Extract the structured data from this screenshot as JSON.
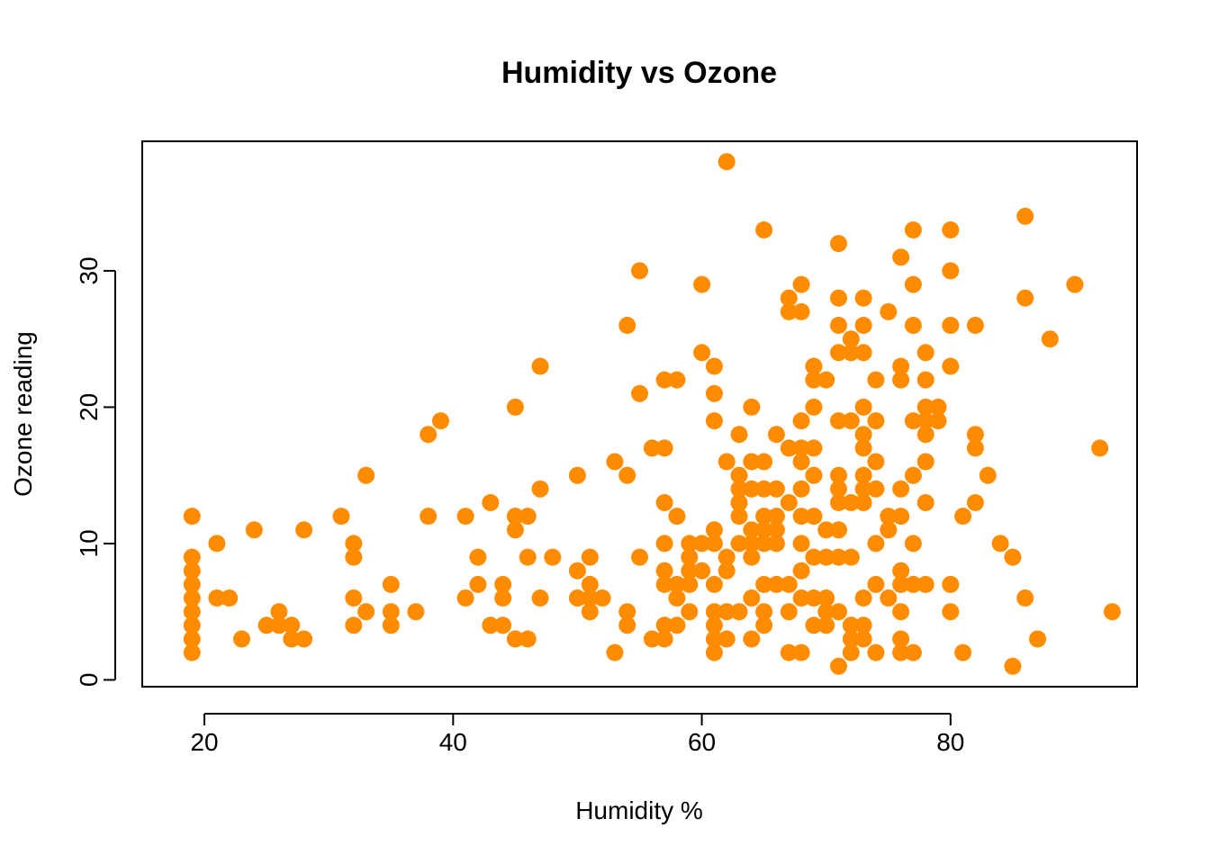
{
  "chart_data": {
    "type": "scatter",
    "title": "Humidity vs Ozone",
    "xlabel": "Humidity %",
    "ylabel": "Ozone reading",
    "xlim": [
      15,
      95
    ],
    "ylim": [
      -0.5,
      39.5
    ],
    "xticks": [
      20,
      40,
      60,
      80
    ],
    "yticks": [
      0,
      10,
      20,
      30
    ],
    "grid": false,
    "marker": "filled-circle",
    "color": "#ff8c00",
    "points": [
      [
        19,
        12
      ],
      [
        19,
        9
      ],
      [
        19,
        8
      ],
      [
        19,
        7
      ],
      [
        19,
        6
      ],
      [
        19,
        5
      ],
      [
        19,
        4
      ],
      [
        19,
        3
      ],
      [
        19,
        2
      ],
      [
        21,
        10
      ],
      [
        21,
        6
      ],
      [
        22,
        6
      ],
      [
        23,
        3
      ],
      [
        24,
        11
      ],
      [
        25,
        4
      ],
      [
        26,
        5
      ],
      [
        26,
        4
      ],
      [
        27,
        4
      ],
      [
        27,
        3
      ],
      [
        28,
        11
      ],
      [
        28,
        3
      ],
      [
        31,
        12
      ],
      [
        32,
        10
      ],
      [
        32,
        9
      ],
      [
        32,
        6
      ],
      [
        32,
        4
      ],
      [
        33,
        15
      ],
      [
        33,
        5
      ],
      [
        35,
        7
      ],
      [
        35,
        5
      ],
      [
        35,
        4
      ],
      [
        37,
        5
      ],
      [
        38,
        18
      ],
      [
        38,
        12
      ],
      [
        39,
        19
      ],
      [
        41,
        12
      ],
      [
        41,
        6
      ],
      [
        42,
        9
      ],
      [
        42,
        7
      ],
      [
        43,
        13
      ],
      [
        43,
        4
      ],
      [
        44,
        7
      ],
      [
        44,
        6
      ],
      [
        44,
        4
      ],
      [
        45,
        20
      ],
      [
        45,
        12
      ],
      [
        45,
        11
      ],
      [
        45,
        3
      ],
      [
        46,
        12
      ],
      [
        46,
        9
      ],
      [
        46,
        3
      ],
      [
        47,
        23
      ],
      [
        47,
        14
      ],
      [
        47,
        6
      ],
      [
        48,
        9
      ],
      [
        50,
        15
      ],
      [
        50,
        8
      ],
      [
        50,
        6
      ],
      [
        51,
        9
      ],
      [
        51,
        7
      ],
      [
        51,
        6
      ],
      [
        51,
        5
      ],
      [
        52,
        6
      ],
      [
        53,
        16
      ],
      [
        53,
        2
      ],
      [
        54,
        26
      ],
      [
        54,
        15
      ],
      [
        54,
        5
      ],
      [
        54,
        4
      ],
      [
        55,
        30
      ],
      [
        55,
        21
      ],
      [
        55,
        9
      ],
      [
        56,
        17
      ],
      [
        56,
        3
      ],
      [
        57,
        22
      ],
      [
        57,
        17
      ],
      [
        57,
        13
      ],
      [
        57,
        10
      ],
      [
        57,
        8
      ],
      [
        57,
        7
      ],
      [
        57,
        4
      ],
      [
        57,
        3
      ],
      [
        58,
        22
      ],
      [
        58,
        12
      ],
      [
        58,
        7
      ],
      [
        58,
        6
      ],
      [
        58,
        4
      ],
      [
        59,
        10
      ],
      [
        59,
        9
      ],
      [
        59,
        8
      ],
      [
        59,
        7
      ],
      [
        59,
        5
      ],
      [
        60,
        29
      ],
      [
        60,
        24
      ],
      [
        60,
        10
      ],
      [
        60,
        8
      ],
      [
        61,
        23
      ],
      [
        61,
        21
      ],
      [
        61,
        19
      ],
      [
        61,
        11
      ],
      [
        61,
        10
      ],
      [
        61,
        7
      ],
      [
        61,
        5
      ],
      [
        61,
        4
      ],
      [
        61,
        3
      ],
      [
        61,
        2
      ],
      [
        62,
        38
      ],
      [
        62,
        16
      ],
      [
        62,
        9
      ],
      [
        62,
        8
      ],
      [
        62,
        5
      ],
      [
        62,
        3
      ],
      [
        63,
        18
      ],
      [
        63,
        15
      ],
      [
        63,
        14
      ],
      [
        63,
        13
      ],
      [
        63,
        12
      ],
      [
        63,
        10
      ],
      [
        63,
        5
      ],
      [
        64,
        20
      ],
      [
        64,
        16
      ],
      [
        64,
        14
      ],
      [
        64,
        11
      ],
      [
        64,
        10
      ],
      [
        64,
        9
      ],
      [
        64,
        6
      ],
      [
        64,
        3
      ],
      [
        65,
        33
      ],
      [
        65,
        16
      ],
      [
        65,
        14
      ],
      [
        65,
        12
      ],
      [
        65,
        11
      ],
      [
        65,
        10
      ],
      [
        65,
        7
      ],
      [
        65,
        5
      ],
      [
        65,
        4
      ],
      [
        66,
        18
      ],
      [
        66,
        14
      ],
      [
        66,
        12
      ],
      [
        66,
        11
      ],
      [
        66,
        10
      ],
      [
        66,
        7
      ],
      [
        67,
        28
      ],
      [
        67,
        27
      ],
      [
        67,
        17
      ],
      [
        67,
        13
      ],
      [
        67,
        7
      ],
      [
        67,
        5
      ],
      [
        67,
        2
      ],
      [
        68,
        29
      ],
      [
        68,
        27
      ],
      [
        68,
        19
      ],
      [
        68,
        17
      ],
      [
        68,
        16
      ],
      [
        68,
        14
      ],
      [
        68,
        12
      ],
      [
        68,
        10
      ],
      [
        68,
        8
      ],
      [
        68,
        6
      ],
      [
        68,
        2
      ],
      [
        69,
        23
      ],
      [
        69,
        22
      ],
      [
        69,
        20
      ],
      [
        69,
        17
      ],
      [
        69,
        15
      ],
      [
        69,
        12
      ],
      [
        69,
        9
      ],
      [
        69,
        6
      ],
      [
        69,
        4
      ],
      [
        70,
        22
      ],
      [
        70,
        11
      ],
      [
        70,
        9
      ],
      [
        70,
        6
      ],
      [
        70,
        5
      ],
      [
        70,
        4
      ],
      [
        71,
        32
      ],
      [
        71,
        28
      ],
      [
        71,
        26
      ],
      [
        71,
        24
      ],
      [
        71,
        19
      ],
      [
        71,
        15
      ],
      [
        71,
        14
      ],
      [
        71,
        13
      ],
      [
        71,
        11
      ],
      [
        71,
        9
      ],
      [
        71,
        5
      ],
      [
        71,
        1
      ],
      [
        72,
        25
      ],
      [
        72,
        24
      ],
      [
        72,
        19
      ],
      [
        72,
        13
      ],
      [
        72,
        9
      ],
      [
        72,
        4
      ],
      [
        72,
        3
      ],
      [
        72,
        2
      ],
      [
        73,
        28
      ],
      [
        73,
        26
      ],
      [
        73,
        24
      ],
      [
        73,
        20
      ],
      [
        73,
        18
      ],
      [
        73,
        17
      ],
      [
        73,
        15
      ],
      [
        73,
        14
      ],
      [
        73,
        13
      ],
      [
        73,
        6
      ],
      [
        73,
        4
      ],
      [
        73,
        3
      ],
      [
        74,
        22
      ],
      [
        74,
        19
      ],
      [
        74,
        16
      ],
      [
        74,
        14
      ],
      [
        74,
        10
      ],
      [
        74,
        7
      ],
      [
        74,
        2
      ],
      [
        75,
        27
      ],
      [
        75,
        12
      ],
      [
        75,
        11
      ],
      [
        75,
        6
      ],
      [
        76,
        31
      ],
      [
        76,
        23
      ],
      [
        76,
        22
      ],
      [
        76,
        14
      ],
      [
        76,
        12
      ],
      [
        76,
        8
      ],
      [
        76,
        7
      ],
      [
        76,
        5
      ],
      [
        76,
        3
      ],
      [
        76,
        2
      ],
      [
        77,
        33
      ],
      [
        77,
        29
      ],
      [
        77,
        26
      ],
      [
        77,
        19
      ],
      [
        77,
        15
      ],
      [
        77,
        10
      ],
      [
        77,
        7
      ],
      [
        77,
        2
      ],
      [
        78,
        24
      ],
      [
        78,
        22
      ],
      [
        78,
        20
      ],
      [
        78,
        19
      ],
      [
        78,
        18
      ],
      [
        78,
        16
      ],
      [
        78,
        13
      ],
      [
        78,
        7
      ],
      [
        79,
        20
      ],
      [
        79,
        19
      ],
      [
        80,
        33
      ],
      [
        80,
        30
      ],
      [
        80,
        26
      ],
      [
        80,
        23
      ],
      [
        80,
        7
      ],
      [
        80,
        5
      ],
      [
        81,
        12
      ],
      [
        81,
        2
      ],
      [
        82,
        26
      ],
      [
        82,
        18
      ],
      [
        82,
        17
      ],
      [
        82,
        13
      ],
      [
        83,
        15
      ],
      [
        84,
        10
      ],
      [
        85,
        9
      ],
      [
        85,
        1
      ],
      [
        86,
        34
      ],
      [
        86,
        28
      ],
      [
        86,
        6
      ],
      [
        87,
        3
      ],
      [
        88,
        25
      ],
      [
        90,
        29
      ],
      [
        92,
        17
      ],
      [
        93,
        5
      ]
    ]
  }
}
